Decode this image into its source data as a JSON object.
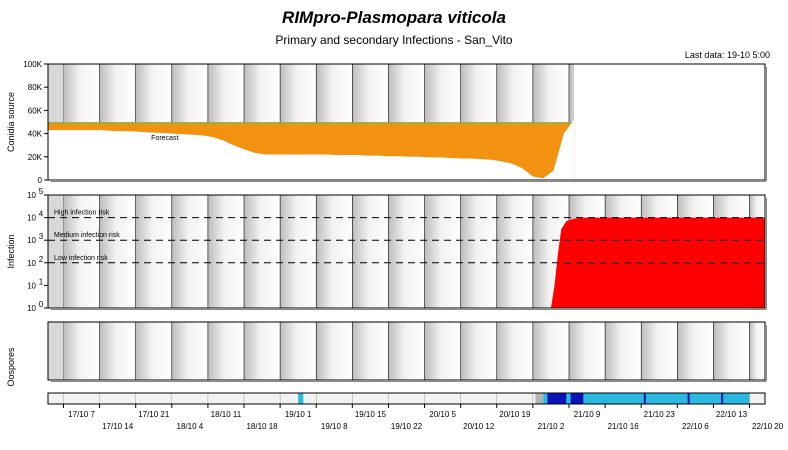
{
  "header": {
    "title": "RIMpro-Plasmopara viticola",
    "subtitle": "Primary and secondary Infections - San_Vito",
    "last_data": "Last data: 19-10 5:00"
  },
  "colors": {
    "panel_bg_gradient": [
      "#bdbdbd",
      "#ffffff"
    ],
    "source_fill": "#f39110",
    "source_top_band": "#a6a32c",
    "infection_fill": "#ff0000",
    "timeline_light": "#2cb9df",
    "timeline_dark": "#0a14b8",
    "timeline_gray": "#b4b4b4"
  },
  "x_axis": {
    "start": "17/10 4:00",
    "end": "22/10 23:00",
    "ticks_top_row": [
      "17/10 7",
      "17/10 21",
      "18/10 11",
      "19/10 1",
      "19/10 15",
      "20/10 5",
      "20/10 19",
      "21/10 9",
      "21/10 23",
      "22/10 13"
    ],
    "ticks_bottom_row": [
      "17/10 14",
      "18/10 4",
      "18/10 18",
      "19/10 8",
      "19/10 22",
      "20/10 12",
      "21/10 2",
      "21/10 16",
      "22/10 6",
      "22/10 20"
    ]
  },
  "chart_data": [
    {
      "type": "area",
      "panel": "conidia-source",
      "ylabel": "Conidia source",
      "yticks": [
        "0",
        "20K",
        "40K",
        "60K",
        "80K",
        "100K"
      ],
      "ylim": [
        0,
        100000
      ],
      "annotation": "Forecast",
      "series": [
        {
          "x_hours_from_start": [
            0,
            2,
            4,
            6,
            8,
            10,
            12,
            14,
            16,
            18,
            20,
            22,
            24,
            26,
            28,
            30,
            32,
            34,
            36,
            38,
            40,
            42,
            44,
            46,
            48,
            50,
            52,
            54,
            56,
            58,
            60,
            62,
            64,
            66,
            68,
            70,
            72,
            74,
            76,
            78,
            80,
            82,
            84,
            86,
            88,
            90,
            92,
            94,
            96,
            98,
            100,
            102,
            104,
            106,
            108,
            110,
            112,
            114,
            116,
            118,
            120,
            122,
            124,
            126,
            128,
            130,
            132,
            134,
            136
          ],
          "values": [
            43000,
            43000,
            43000,
            43000,
            43000,
            43000,
            42500,
            42000,
            42000,
            41500,
            41000,
            40500,
            40000,
            39500,
            39000,
            38500,
            37000,
            34000,
            30000,
            26500,
            23500,
            22000,
            22000,
            22000,
            22000,
            22000,
            22000,
            22000,
            21500,
            21500,
            21500,
            21000,
            21000,
            20500,
            20500,
            20000,
            20000,
            19500,
            19500,
            19000,
            18500,
            18500,
            18000,
            17500,
            16000,
            14000,
            10000,
            3000,
            1500,
            8000,
            40000,
            52000,
            0,
            0,
            0,
            0,
            0,
            0,
            0,
            0,
            0,
            0,
            0,
            0,
            0,
            0,
            0,
            0,
            0
          ]
        }
      ],
      "top_band_value": 50000
    },
    {
      "type": "area",
      "panel": "infection",
      "ylabel": "Infection",
      "scale": "log",
      "yticks": [
        "10 0",
        "10 1",
        "10 2",
        "10 3",
        "10 4",
        "10 5"
      ],
      "ylim": [
        1,
        100000
      ],
      "thresholds": [
        {
          "label": "High infection risk",
          "value": 10000
        },
        {
          "label": "Medium infection risk",
          "value": 1000
        },
        {
          "label": "Low infection risk",
          "value": 100
        }
      ],
      "series": [
        {
          "x_hours_from_start": [
            0,
            97.5,
            98.2,
            98.8,
            99.5,
            100.5,
            102,
            104,
            108,
            136
          ],
          "values": [
            1,
            1,
            10,
            200,
            3000,
            7000,
            9000,
            10000,
            10000,
            10000
          ]
        }
      ]
    },
    {
      "type": "area",
      "panel": "oospores",
      "ylabel": "Oospores",
      "series": []
    }
  ],
  "timeline_segments": [
    {
      "from": 48.5,
      "to": 49.5,
      "color": "light"
    },
    {
      "from": 94.5,
      "to": 96.0,
      "color": "gray"
    },
    {
      "from": 96.0,
      "to": 96.8,
      "color": "light"
    },
    {
      "from": 96.8,
      "to": 100.5,
      "color": "dark"
    },
    {
      "from": 100.5,
      "to": 101.3,
      "color": "light"
    },
    {
      "from": 101.3,
      "to": 103.8,
      "color": "dark"
    },
    {
      "from": 103.8,
      "to": 136.0,
      "color": "light"
    }
  ],
  "dark_markers_in_light": [
    115.5,
    124.0,
    130.5
  ]
}
